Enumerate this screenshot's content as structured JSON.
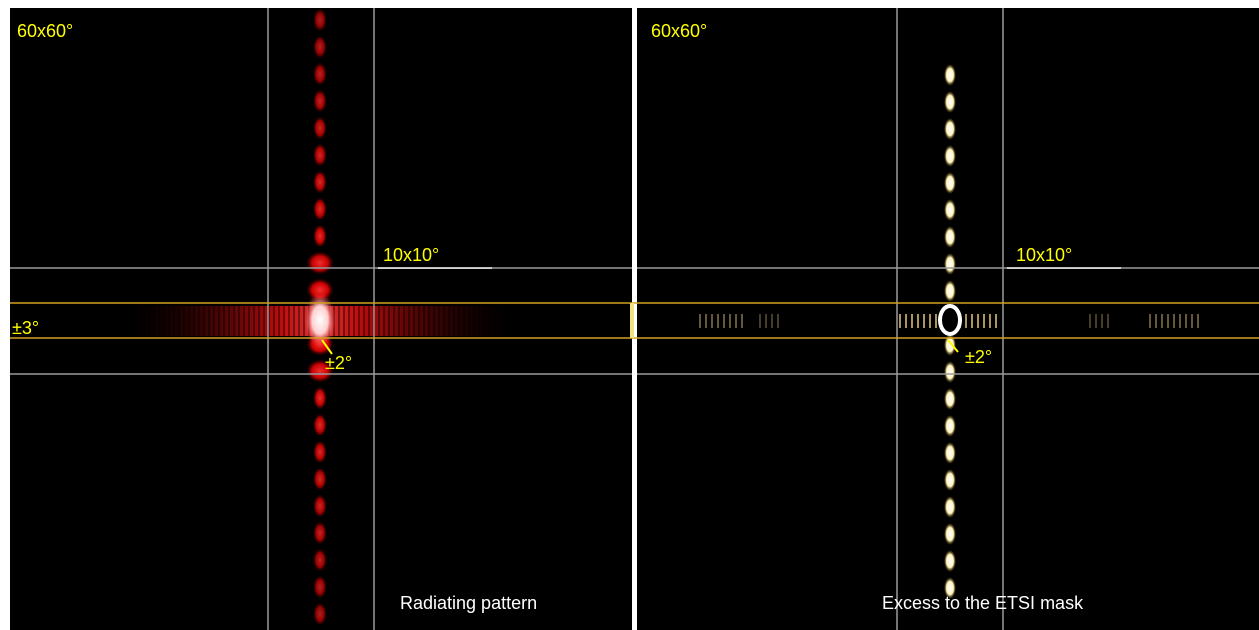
{
  "panels": [
    {
      "corner_label": "60x60°",
      "box_label": "10x10°",
      "band_label": "±3°",
      "angle_label": "±2°",
      "caption": "Radiating pattern"
    },
    {
      "corner_label": "60x60°",
      "box_label": "10x10°",
      "angle_label": "±2°",
      "caption": "Excess to the ETSI mask"
    }
  ]
}
